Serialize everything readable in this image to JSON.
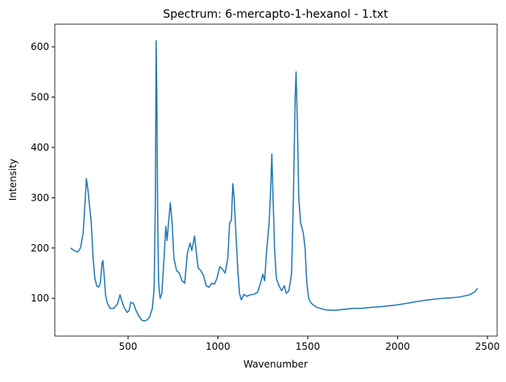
{
  "chart_data": {
    "type": "line",
    "title": "Spectrum: 6-mercapto-1-hexanol - 1.txt",
    "x_label": "Wavenumber",
    "y_label": "Intensity",
    "xlim": [
      92,
      2554
    ],
    "ylim": [
      25,
      645
    ],
    "xticks": [
      500,
      1000,
      1500,
      2000,
      2500
    ],
    "yticks": [
      100,
      200,
      300,
      400,
      500,
      600
    ],
    "x": [
      180,
      200,
      220,
      235,
      250,
      262,
      268,
      275,
      285,
      295,
      305,
      315,
      325,
      335,
      345,
      355,
      360,
      368,
      375,
      385,
      400,
      420,
      440,
      455,
      465,
      480,
      495,
      505,
      515,
      530,
      545,
      560,
      575,
      590,
      605,
      620,
      635,
      645,
      652,
      656,
      660,
      665,
      670,
      678,
      688,
      700,
      710,
      717,
      725,
      735,
      745,
      755,
      770,
      785,
      800,
      815,
      830,
      845,
      855,
      870,
      880,
      890,
      905,
      920,
      935,
      950,
      965,
      980,
      995,
      1010,
      1025,
      1040,
      1055,
      1065,
      1075,
      1083,
      1090,
      1100,
      1110,
      1120,
      1130,
      1145,
      1160,
      1180,
      1200,
      1220,
      1235,
      1250,
      1260,
      1270,
      1285,
      1295,
      1300,
      1307,
      1315,
      1325,
      1340,
      1355,
      1370,
      1380,
      1395,
      1410,
      1420,
      1430,
      1435,
      1442,
      1450,
      1460,
      1475,
      1485,
      1495,
      1505,
      1520,
      1550,
      1600,
      1650,
      1700,
      1750,
      1800,
      1850,
      1900,
      1950,
      2000,
      2050,
      2100,
      2150,
      2200,
      2250,
      2300,
      2350,
      2400,
      2430,
      2445
    ],
    "series": [
      {
        "color": "#1f77b4",
        "values": [
          200,
          195,
          192,
          200,
          230,
          300,
          338,
          320,
          285,
          250,
          180,
          140,
          125,
          122,
          130,
          170,
          175,
          140,
          105,
          90,
          80,
          80,
          88,
          107,
          95,
          80,
          72,
          75,
          92,
          90,
          75,
          65,
          57,
          55,
          57,
          63,
          80,
          120,
          300,
          612,
          500,
          250,
          130,
          100,
          110,
          180,
          243,
          215,
          250,
          290,
          250,
          180,
          155,
          150,
          135,
          130,
          190,
          210,
          195,
          224,
          190,
          160,
          155,
          145,
          125,
          122,
          130,
          128,
          140,
          163,
          158,
          150,
          180,
          250,
          255,
          328,
          300,
          230,
          160,
          110,
          97,
          108,
          104,
          107,
          108,
          112,
          128,
          148,
          135,
          190,
          250,
          330,
          387,
          300,
          200,
          140,
          125,
          115,
          125,
          110,
          115,
          150,
          300,
          500,
          550,
          450,
          300,
          250,
          230,
          200,
          130,
          100,
          90,
          82,
          77,
          76,
          78,
          80,
          80,
          82,
          83,
          85,
          87,
          90,
          93,
          96,
          98,
          100,
          101,
          103,
          107,
          113,
          120
        ]
      }
    ]
  }
}
